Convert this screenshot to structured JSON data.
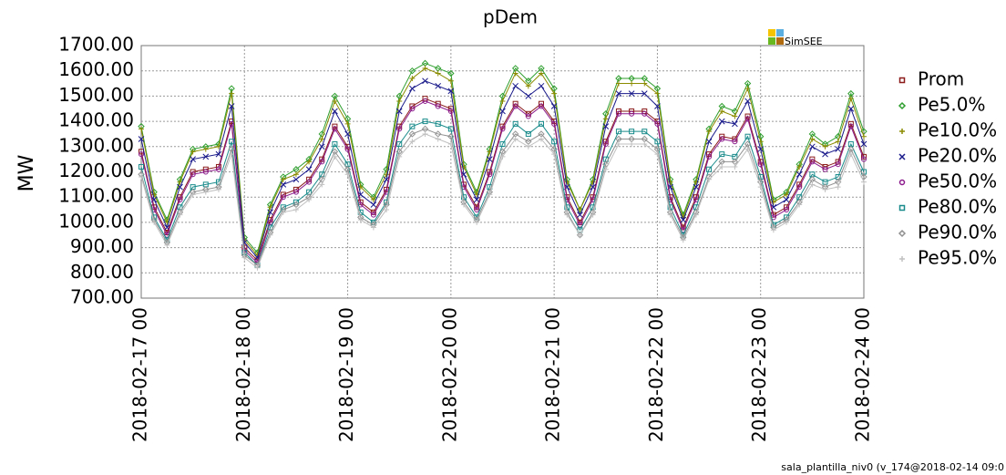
{
  "chart_data": {
    "type": "line",
    "title": "pDem",
    "ylabel": "MW",
    "logo": "SimSEE",
    "footer": "sala_plantilla_niv0 (v_174@2018-02-14 09:0",
    "grid": true,
    "legend": "right",
    "x": [
      "2018-02-17 00",
      "2018-02-17 03",
      "2018-02-17 06",
      "2018-02-17 09",
      "2018-02-17 12",
      "2018-02-17 15",
      "2018-02-17 18",
      "2018-02-17 21",
      "2018-02-18 00",
      "2018-02-18 03",
      "2018-02-18 06",
      "2018-02-18 09",
      "2018-02-18 12",
      "2018-02-18 15",
      "2018-02-18 18",
      "2018-02-18 21",
      "2018-02-19 00",
      "2018-02-19 03",
      "2018-02-19 06",
      "2018-02-19 09",
      "2018-02-19 12",
      "2018-02-19 15",
      "2018-02-19 18",
      "2018-02-19 21",
      "2018-02-20 00",
      "2018-02-20 03",
      "2018-02-20 06",
      "2018-02-20 09",
      "2018-02-20 12",
      "2018-02-20 15",
      "2018-02-20 18",
      "2018-02-20 21",
      "2018-02-21 00",
      "2018-02-21 03",
      "2018-02-21 06",
      "2018-02-21 09",
      "2018-02-21 12",
      "2018-02-21 15",
      "2018-02-21 18",
      "2018-02-21 21",
      "2018-02-22 00",
      "2018-02-22 03",
      "2018-02-22 06",
      "2018-02-22 09",
      "2018-02-22 12",
      "2018-02-22 15",
      "2018-02-22 18",
      "2018-02-22 21",
      "2018-02-23 00",
      "2018-02-23 03",
      "2018-02-23 06",
      "2018-02-23 09",
      "2018-02-23 12",
      "2018-02-23 15",
      "2018-02-23 18",
      "2018-02-23 21",
      "2018-02-24 00"
    ],
    "xlim": [
      "2018-02-17 00",
      "2018-02-24 00"
    ],
    "xticks": [
      "2018-02-17 00",
      "2018-02-18 00",
      "2018-02-19 00",
      "2018-02-20 00",
      "2018-02-21 00",
      "2018-02-22 00",
      "2018-02-23 00",
      "2018-02-24 00"
    ],
    "ylim": [
      700,
      1700
    ],
    "yticks": [
      {
        "value": 700,
        "label": "700.00"
      },
      {
        "value": 800,
        "label": "800.00"
      },
      {
        "value": 900,
        "label": "900.00"
      },
      {
        "value": 1000,
        "label": "1000.00"
      },
      {
        "value": 1100,
        "label": "1100.00"
      },
      {
        "value": 1200,
        "label": "1200.00"
      },
      {
        "value": 1300,
        "label": "1300.00"
      },
      {
        "value": 1400,
        "label": "1400.00"
      },
      {
        "value": 1500,
        "label": "1500.00"
      },
      {
        "value": 1600,
        "label": "1600.00"
      },
      {
        "value": 1700,
        "label": "1700.00"
      }
    ],
    "series": [
      {
        "name": "Prom",
        "color": "#8b1a1a",
        "marker": "square",
        "values": [
          1280,
          1060,
          960,
          1100,
          1200,
          1210,
          1220,
          1400,
          900,
          850,
          1010,
          1110,
          1130,
          1170,
          1250,
          1380,
          1300,
          1080,
          1040,
          1130,
          1380,
          1460,
          1490,
          1470,
          1450,
          1150,
          1060,
          1200,
          1380,
          1470,
          1430,
          1470,
          1400,
          1100,
          1000,
          1100,
          1320,
          1440,
          1440,
          1440,
          1400,
          1100,
          980,
          1100,
          1270,
          1340,
          1330,
          1420,
          1240,
          1030,
          1060,
          1150,
          1250,
          1220,
          1240,
          1390,
          1260
        ]
      },
      {
        "name": "Pe5.0%",
        "color": "#2e9e2e",
        "marker": "diamond",
        "values": [
          1380,
          1120,
          1010,
          1170,
          1290,
          1300,
          1310,
          1530,
          940,
          880,
          1070,
          1180,
          1210,
          1250,
          1350,
          1500,
          1410,
          1150,
          1100,
          1210,
          1500,
          1600,
          1630,
          1610,
          1590,
          1230,
          1120,
          1290,
          1500,
          1610,
          1560,
          1610,
          1530,
          1170,
          1050,
          1170,
          1430,
          1570,
          1570,
          1570,
          1530,
          1170,
          1030,
          1170,
          1370,
          1460,
          1440,
          1550,
          1340,
          1090,
          1120,
          1230,
          1350,
          1310,
          1340,
          1510,
          1360
        ]
      },
      {
        "name": "Pe10.0%",
        "color": "#8b8b00",
        "marker": "plus",
        "values": [
          1370,
          1110,
          1000,
          1160,
          1280,
          1290,
          1300,
          1510,
          930,
          870,
          1060,
          1170,
          1190,
          1240,
          1330,
          1480,
          1390,
          1140,
          1090,
          1190,
          1480,
          1570,
          1610,
          1590,
          1560,
          1220,
          1110,
          1280,
          1480,
          1590,
          1540,
          1590,
          1510,
          1160,
          1050,
          1160,
          1410,
          1550,
          1550,
          1550,
          1510,
          1160,
          1020,
          1160,
          1360,
          1440,
          1420,
          1530,
          1320,
          1080,
          1110,
          1220,
          1330,
          1300,
          1320,
          1490,
          1340
        ]
      },
      {
        "name": "Pe20.0%",
        "color": "#1a1a8b",
        "marker": "cross",
        "values": [
          1330,
          1090,
          980,
          1140,
          1250,
          1260,
          1270,
          1460,
          920,
          860,
          1040,
          1150,
          1170,
          1210,
          1300,
          1440,
          1350,
          1110,
          1070,
          1170,
          1440,
          1530,
          1560,
          1540,
          1520,
          1190,
          1090,
          1250,
          1440,
          1540,
          1500,
          1540,
          1460,
          1140,
          1030,
          1140,
          1380,
          1510,
          1510,
          1510,
          1460,
          1140,
          1010,
          1140,
          1320,
          1400,
          1390,
          1480,
          1290,
          1060,
          1090,
          1190,
          1300,
          1270,
          1290,
          1450,
          1310
        ]
      },
      {
        "name": "Pe50.0%",
        "color": "#8b1a8b",
        "marker": "circle",
        "values": [
          1270,
          1050,
          950,
          1090,
          1190,
          1200,
          1210,
          1390,
          890,
          840,
          1000,
          1100,
          1120,
          1160,
          1240,
          1370,
          1290,
          1070,
          1030,
          1120,
          1370,
          1450,
          1480,
          1460,
          1440,
          1140,
          1050,
          1190,
          1370,
          1460,
          1420,
          1460,
          1390,
          1090,
          990,
          1090,
          1310,
          1430,
          1430,
          1430,
          1390,
          1090,
          970,
          1090,
          1260,
          1330,
          1320,
          1410,
          1230,
          1020,
          1050,
          1140,
          1240,
          1210,
          1230,
          1380,
          1250
        ]
      },
      {
        "name": "Pe80.0%",
        "color": "#1a8b8b",
        "marker": "square",
        "values": [
          1220,
          1020,
          930,
          1060,
          1140,
          1150,
          1160,
          1320,
          880,
          830,
          980,
          1060,
          1080,
          1120,
          1190,
          1310,
          1230,
          1040,
          1000,
          1080,
          1310,
          1380,
          1400,
          1390,
          1370,
          1100,
          1020,
          1140,
          1310,
          1390,
          1350,
          1390,
          1320,
          1060,
          970,
          1060,
          1250,
          1360,
          1360,
          1360,
          1320,
          1060,
          950,
          1060,
          1210,
          1270,
          1260,
          1340,
          1180,
          990,
          1020,
          1100,
          1190,
          1160,
          1180,
          1310,
          1200
        ]
      },
      {
        "name": "Pe90.0%",
        "color": "#909090",
        "marker": "diamond",
        "values": [
          1190,
          1010,
          920,
          1040,
          1120,
          1130,
          1140,
          1290,
          870,
          830,
          960,
          1050,
          1070,
          1100,
          1170,
          1280,
          1210,
          1020,
          990,
          1070,
          1280,
          1350,
          1370,
          1350,
          1340,
          1080,
          1010,
          1120,
          1280,
          1350,
          1320,
          1350,
          1290,
          1040,
          950,
          1040,
          1230,
          1330,
          1330,
          1330,
          1290,
          1040,
          940,
          1040,
          1180,
          1240,
          1240,
          1310,
          1160,
          980,
          1010,
          1080,
          1170,
          1140,
          1160,
          1290,
          1180
        ]
      },
      {
        "name": "Pe95.0%",
        "color": "#c0c0c0",
        "marker": "plus",
        "values": [
          1180,
          1000,
          910,
          1030,
          1110,
          1120,
          1130,
          1270,
          860,
          820,
          950,
          1040,
          1050,
          1090,
          1150,
          1260,
          1190,
          1010,
          980,
          1050,
          1260,
          1320,
          1350,
          1330,
          1310,
          1070,
          1000,
          1110,
          1260,
          1330,
          1300,
          1330,
          1270,
          1030,
          950,
          1030,
          1210,
          1310,
          1310,
          1310,
          1270,
          1030,
          930,
          1030,
          1170,
          1220,
          1220,
          1290,
          1140,
          970,
          1000,
          1070,
          1150,
          1130,
          1140,
          1270,
          1160
        ]
      }
    ]
  }
}
